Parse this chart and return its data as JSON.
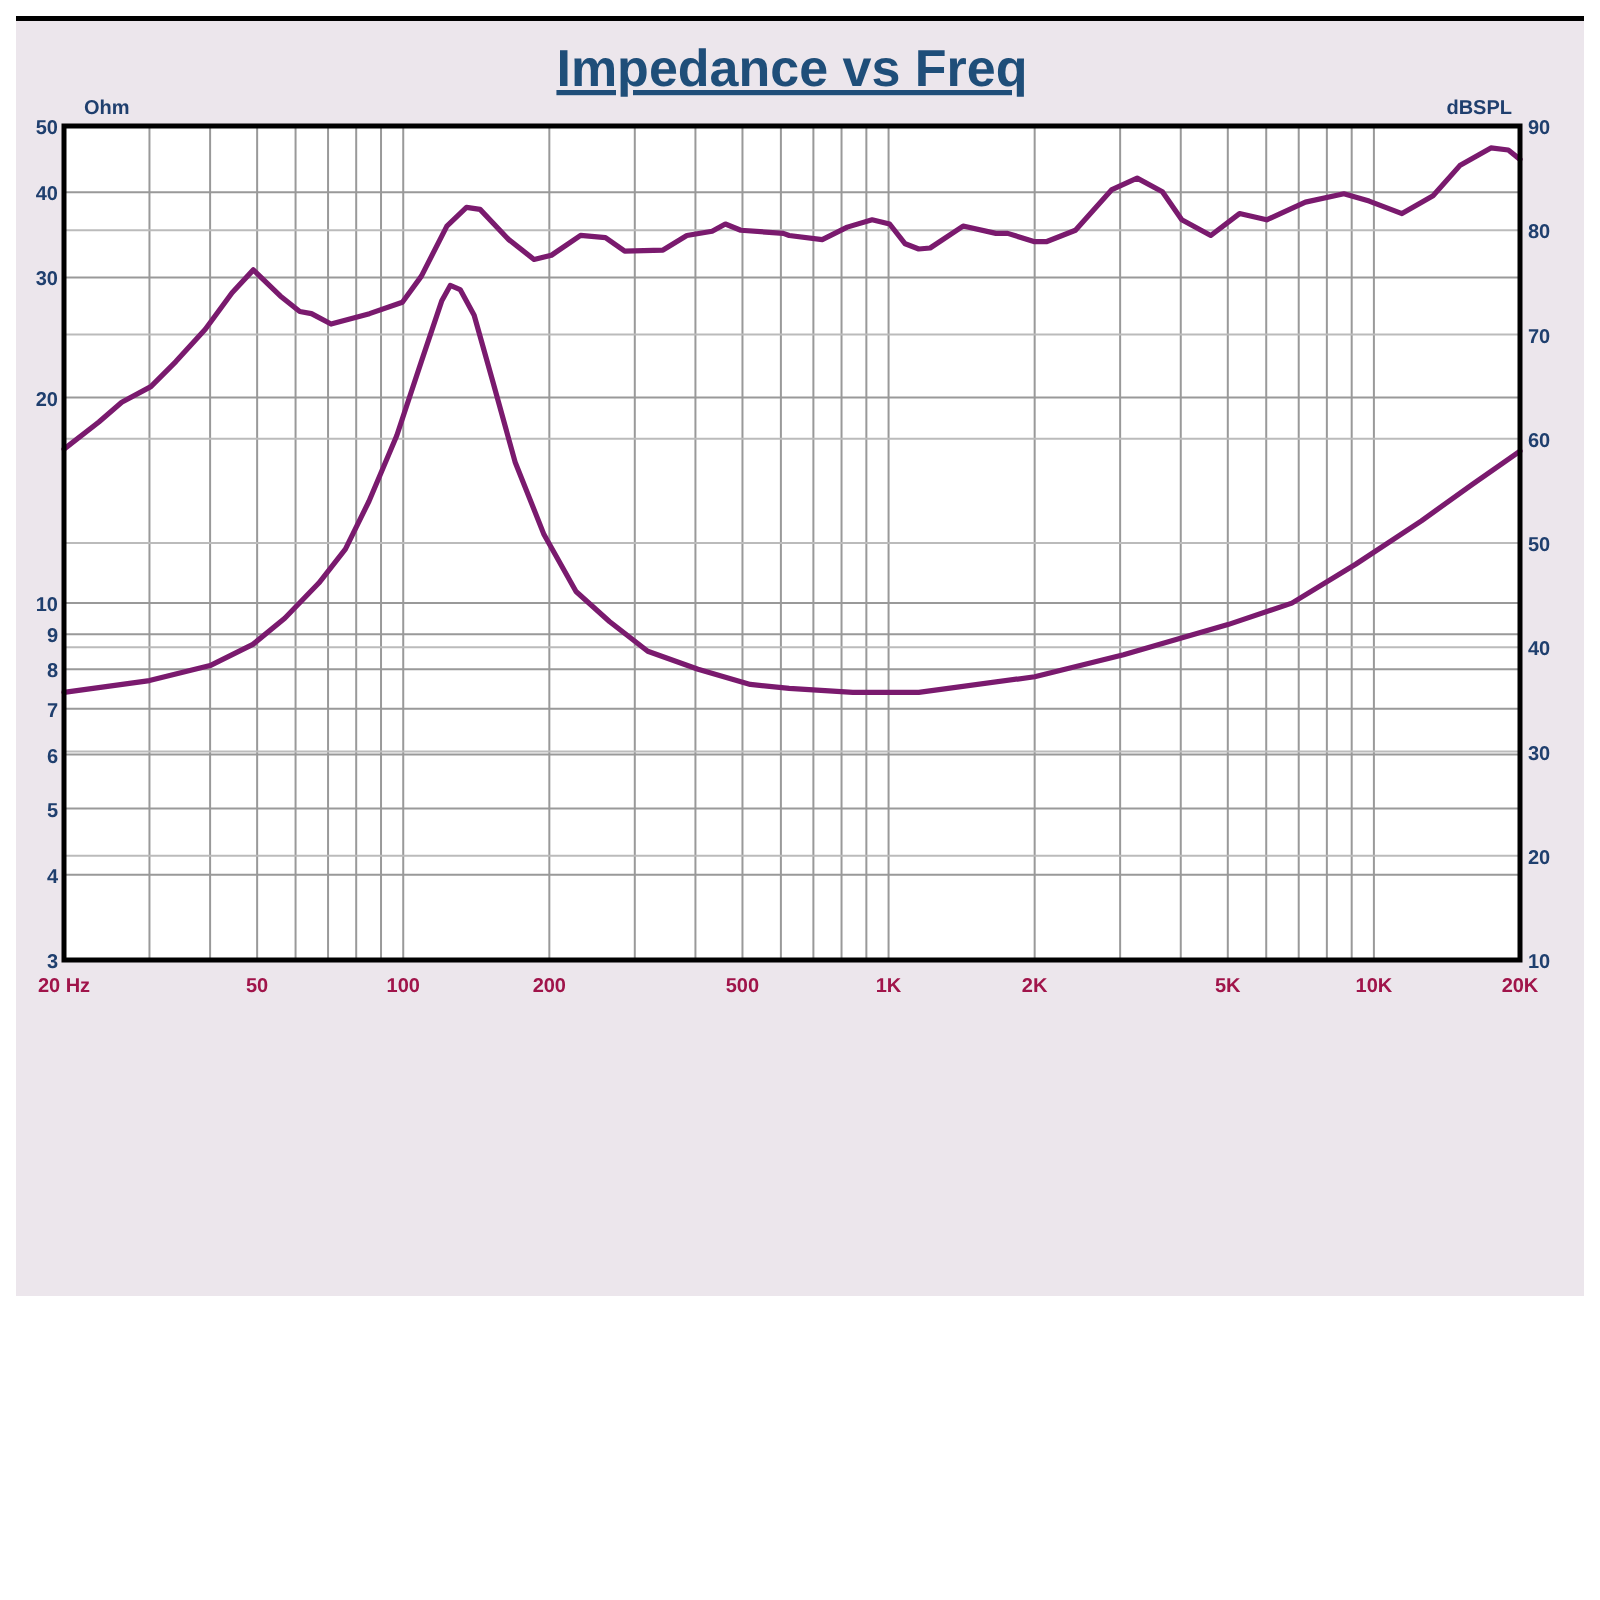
{
  "chart_data": {
    "type": "line",
    "title": "Impedance vs Freq",
    "ylabel": "Ohm",
    "y2label": "dBSPL",
    "log": "xy",
    "grid": true,
    "line_style": "solid",
    "marker": "none",
    "xlim": [
      20,
      20000
    ],
    "xticks": [
      {
        "value": 20,
        "label": "20 Hz"
      },
      {
        "value": 30,
        "label": null
      },
      {
        "value": 40,
        "label": null
      },
      50,
      {
        "value": 60,
        "label": null
      },
      {
        "value": 70,
        "label": null
      },
      {
        "value": 80,
        "label": null
      },
      {
        "value": 90,
        "label": null
      },
      100,
      {
        "value": 300,
        "label": null
      },
      {
        "value": 400,
        "label": null
      },
      200,
      500,
      {
        "value": 600,
        "label": null
      },
      {
        "value": 700,
        "label": null
      },
      {
        "value": 800,
        "label": null
      },
      {
        "value": 900,
        "label": null
      },
      {
        "value": 1000,
        "label": "1K"
      },
      {
        "value": 2000,
        "label": "2K"
      },
      {
        "value": 3000,
        "label": null
      },
      {
        "value": 4000,
        "label": null
      },
      {
        "value": 5000,
        "label": "5K"
      },
      {
        "value": 6000,
        "label": null
      },
      {
        "value": 7000,
        "label": null
      },
      {
        "value": 8000,
        "label": null
      },
      {
        "value": 9000,
        "label": null
      },
      {
        "value": 10000,
        "label": "10K"
      },
      {
        "value": 20000,
        "label": "20K"
      }
    ],
    "ylim": [
      3,
      50
    ],
    "yticks": [
      3,
      4,
      5,
      6,
      7,
      8,
      9,
      10,
      20,
      30,
      40,
      50
    ],
    "y2lim": [
      10,
      90
    ],
    "y2ticks": [
      10,
      20,
      30,
      40,
      50,
      60,
      70,
      80,
      90
    ],
    "series": [
      {
        "color": "#7a1a6e",
        "axis": "y",
        "x": [
          20,
          30,
          40,
          49,
          57,
          67,
          76,
          85,
          97,
          109,
          120,
          125,
          131,
          140,
          153,
          170,
          195,
          227,
          266,
          319,
          405,
          519,
          624,
          844,
          1154,
          2000,
          3049,
          5003,
          6776,
          9170,
          12530,
          15900,
          20000
        ],
        "values": [
          7.4,
          7.7,
          8.1,
          8.7,
          9.5,
          10.7,
          12,
          14.1,
          17.6,
          22.6,
          27.7,
          29.2,
          28.8,
          26.4,
          21.1,
          16.1,
          12.6,
          10.4,
          9.4,
          8.5,
          8,
          7.6,
          7.5,
          7.4,
          7.4,
          7.8,
          8.4,
          9.3,
          10,
          11.4,
          13.2,
          14.9,
          16.7
        ]
      },
      {
        "color": "#7a1a6e",
        "axis": "y2",
        "x": [
          20,
          23.6,
          26.3,
          30.2,
          34,
          39.1,
          44.4,
          49.1,
          55.8,
          61.2,
          64.7,
          71,
          85.2,
          99.6,
          109,
          123,
          135,
          144,
          165,
          186,
          202,
          232,
          261,
          286,
          343,
          384,
          433,
          461,
          496,
          607,
          624,
          730,
          822,
          925,
          1005,
          1082,
          1154,
          1218,
          1424,
          1664,
          1760,
          2000,
          2113,
          2427,
          2885,
          3252,
          3666,
          4019,
          4612,
          5285,
          6012,
          7226,
          8672,
          9776,
          11426,
          13240,
          15032,
          17420,
          18920,
          20000
        ],
        "values": [
          59,
          61.6,
          63.5,
          65,
          67.4,
          70.5,
          74,
          76.2,
          73.7,
          72.2,
          72,
          71,
          72,
          73.1,
          75.6,
          80.4,
          82.2,
          82,
          79.1,
          77.2,
          77.6,
          79.5,
          79.3,
          78,
          78.1,
          79.5,
          79.9,
          80.6,
          80,
          79.7,
          79.5,
          79.1,
          80.3,
          81,
          80.6,
          78.7,
          78.2,
          78.3,
          80.4,
          79.7,
          79.7,
          78.9,
          78.9,
          80,
          83.9,
          85,
          83.7,
          81,
          79.5,
          81.6,
          81,
          82.7,
          83.5,
          82.8,
          81.6,
          83.3,
          86.2,
          87.9,
          87.7,
          86.8
        ]
      }
    ]
  }
}
